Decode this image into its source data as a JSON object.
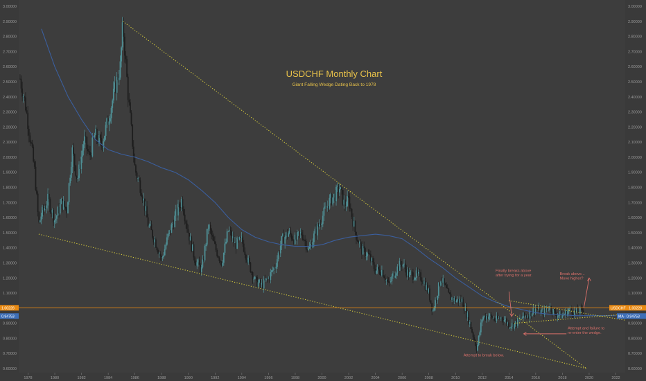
{
  "chart_data": {
    "type": "candlestick",
    "title": "USDCHF Monthly Chart",
    "subtitle": "Giant Falling Wedge Dating Back to 1978",
    "ylim": [
      0.6,
      3.0
    ],
    "xlim": [
      1977.3,
      2022.7
    ],
    "y_ticks": [
      {
        "value": 3.0,
        "label": "3.00000"
      },
      {
        "value": 2.9,
        "label": "2.90000"
      },
      {
        "value": 2.8,
        "label": "2.80000"
      },
      {
        "value": 2.7,
        "label": "2.70000"
      },
      {
        "value": 2.6,
        "label": "2.60000"
      },
      {
        "value": 2.5,
        "label": "2.50000"
      },
      {
        "value": 2.4,
        "label": "2.40000"
      },
      {
        "value": 2.3,
        "label": "2.30000"
      },
      {
        "value": 2.2,
        "label": "2.20000"
      },
      {
        "value": 2.1,
        "label": "2.10000"
      },
      {
        "value": 2.0,
        "label": "2.00000"
      },
      {
        "value": 1.9,
        "label": "1.90000"
      },
      {
        "value": 1.8,
        "label": "1.80000"
      },
      {
        "value": 1.7,
        "label": "1.70000"
      },
      {
        "value": 1.6,
        "label": "1.60000"
      },
      {
        "value": 1.5,
        "label": "1.50000"
      },
      {
        "value": 1.4,
        "label": "1.40000"
      },
      {
        "value": 1.3,
        "label": "1.30000"
      },
      {
        "value": 1.2,
        "label": "1.20000"
      },
      {
        "value": 1.1,
        "label": "1.10000"
      },
      {
        "value": 0.9,
        "label": "0.90000"
      },
      {
        "value": 0.8,
        "label": "0.80000"
      },
      {
        "value": 0.7,
        "label": "0.70000"
      },
      {
        "value": 0.6,
        "label": "0.60000"
      }
    ],
    "x_ticks": [
      {
        "value": 1978,
        "label": "1978"
      },
      {
        "value": 1980,
        "label": "1980"
      },
      {
        "value": 1982,
        "label": "1982"
      },
      {
        "value": 1984,
        "label": "1984"
      },
      {
        "value": 1986,
        "label": "1986"
      },
      {
        "value": 1988,
        "label": "1988"
      },
      {
        "value": 1990,
        "label": "1990"
      },
      {
        "value": 1992,
        "label": "1992"
      },
      {
        "value": 1994,
        "label": "1994"
      },
      {
        "value": 1996,
        "label": "1996"
      },
      {
        "value": 1998,
        "label": "1998"
      },
      {
        "value": 2000,
        "label": "2000"
      },
      {
        "value": 2002,
        "label": "2002"
      },
      {
        "value": 2004,
        "label": "2004"
      },
      {
        "value": 2006,
        "label": "2006"
      },
      {
        "value": 2008,
        "label": "2008"
      },
      {
        "value": 2010,
        "label": "2010"
      },
      {
        "value": 2012,
        "label": "2012"
      },
      {
        "value": 2014,
        "label": "2014"
      },
      {
        "value": 2016,
        "label": "2016"
      },
      {
        "value": 2018,
        "label": "2018"
      },
      {
        "value": 2020,
        "label": "2020"
      },
      {
        "value": 2022,
        "label": "2022"
      }
    ],
    "price_path": [
      [
        1977.4,
        2.52
      ],
      [
        1977.8,
        2.35
      ],
      [
        1978.2,
        2.1
      ],
      [
        1978.5,
        1.9
      ],
      [
        1978.8,
        1.55
      ],
      [
        1979.0,
        1.62
      ],
      [
        1979.5,
        1.72
      ],
      [
        1980.0,
        1.58
      ],
      [
        1980.5,
        1.7
      ],
      [
        1980.9,
        1.65
      ],
      [
        1981.3,
        2.05
      ],
      [
        1981.7,
        1.85
      ],
      [
        1982.2,
        2.12
      ],
      [
        1982.6,
        2.0
      ],
      [
        1983.0,
        2.15
      ],
      [
        1983.5,
        2.08
      ],
      [
        1984.0,
        2.25
      ],
      [
        1984.5,
        2.45
      ],
      [
        1984.9,
        2.6
      ],
      [
        1985.1,
        2.88
      ],
      [
        1985.5,
        2.4
      ],
      [
        1986.0,
        1.92
      ],
      [
        1986.5,
        1.78
      ],
      [
        1987.0,
        1.55
      ],
      [
        1987.5,
        1.45
      ],
      [
        1988.0,
        1.32
      ],
      [
        1988.5,
        1.48
      ],
      [
        1989.0,
        1.6
      ],
      [
        1989.5,
        1.72
      ],
      [
        1990.0,
        1.5
      ],
      [
        1990.5,
        1.32
      ],
      [
        1991.0,
        1.25
      ],
      [
        1991.5,
        1.55
      ],
      [
        1992.0,
        1.4
      ],
      [
        1992.5,
        1.3
      ],
      [
        1993.0,
        1.52
      ],
      [
        1993.5,
        1.42
      ],
      [
        1994.0,
        1.45
      ],
      [
        1994.5,
        1.3
      ],
      [
        1995.0,
        1.18
      ],
      [
        1995.5,
        1.15
      ],
      [
        1996.0,
        1.2
      ],
      [
        1996.5,
        1.28
      ],
      [
        1997.0,
        1.45
      ],
      [
        1997.5,
        1.5
      ],
      [
        1998.0,
        1.45
      ],
      [
        1998.5,
        1.5
      ],
      [
        1999.0,
        1.38
      ],
      [
        1999.5,
        1.5
      ],
      [
        2000.0,
        1.6
      ],
      [
        2000.5,
        1.7
      ],
      [
        2001.0,
        1.75
      ],
      [
        2001.3,
        1.8
      ],
      [
        2001.7,
        1.68
      ],
      [
        2002.0,
        1.72
      ],
      [
        2002.5,
        1.5
      ],
      [
        2003.0,
        1.38
      ],
      [
        2003.5,
        1.35
      ],
      [
        2004.0,
        1.25
      ],
      [
        2004.5,
        1.25
      ],
      [
        2005.0,
        1.15
      ],
      [
        2005.5,
        1.25
      ],
      [
        2006.0,
        1.3
      ],
      [
        2006.5,
        1.22
      ],
      [
        2007.0,
        1.22
      ],
      [
        2007.5,
        1.2
      ],
      [
        2008.0,
        1.1
      ],
      [
        2008.3,
        0.98
      ],
      [
        2008.9,
        1.2
      ],
      [
        2009.5,
        1.08
      ],
      [
        2010.0,
        1.05
      ],
      [
        2010.5,
        1.05
      ],
      [
        2011.0,
        0.92
      ],
      [
        2011.6,
        0.73
      ],
      [
        2012.0,
        0.94
      ],
      [
        2012.5,
        0.95
      ],
      [
        2013.0,
        0.92
      ],
      [
        2013.5,
        0.94
      ],
      [
        2014.0,
        0.89
      ],
      [
        2014.4,
        0.89
      ],
      [
        2015.0,
        0.94
      ],
      [
        2015.5,
        0.96
      ],
      [
        2016.0,
        1.0
      ],
      [
        2016.5,
        0.97
      ],
      [
        2017.0,
        1.01
      ],
      [
        2017.5,
        0.96
      ],
      [
        2018.0,
        0.95
      ],
      [
        2018.5,
        0.99
      ],
      [
        2019.0,
        0.97
      ],
      [
        2019.6,
        0.99
      ]
    ],
    "moving_average": [
      [
        1979.0,
        2.85
      ],
      [
        1980.0,
        2.6
      ],
      [
        1981.0,
        2.4
      ],
      [
        1982.0,
        2.25
      ],
      [
        1983.0,
        2.12
      ],
      [
        1984.0,
        2.05
      ],
      [
        1985.0,
        2.02
      ],
      [
        1986.0,
        2.0
      ],
      [
        1987.0,
        1.97
      ],
      [
        1988.0,
        1.93
      ],
      [
        1989.0,
        1.9
      ],
      [
        1990.0,
        1.85
      ],
      [
        1991.0,
        1.78
      ],
      [
        1992.0,
        1.7
      ],
      [
        1993.0,
        1.6
      ],
      [
        1994.0,
        1.52
      ],
      [
        1995.0,
        1.47
      ],
      [
        1996.0,
        1.44
      ],
      [
        1997.0,
        1.42
      ],
      [
        1998.0,
        1.41
      ],
      [
        1999.0,
        1.41
      ],
      [
        2000.0,
        1.42
      ],
      [
        2001.0,
        1.45
      ],
      [
        2002.0,
        1.47
      ],
      [
        2003.0,
        1.48
      ],
      [
        2004.0,
        1.49
      ],
      [
        2005.0,
        1.48
      ],
      [
        2006.0,
        1.46
      ],
      [
        2007.0,
        1.4
      ],
      [
        2008.0,
        1.33
      ],
      [
        2009.0,
        1.27
      ],
      [
        2010.0,
        1.2
      ],
      [
        2011.0,
        1.14
      ],
      [
        2012.0,
        1.08
      ],
      [
        2013.0,
        1.04
      ],
      [
        2014.0,
        1.01
      ],
      [
        2015.0,
        0.99
      ],
      [
        2016.0,
        0.97
      ],
      [
        2017.0,
        0.96
      ],
      [
        2018.0,
        0.955
      ],
      [
        2019.0,
        0.95
      ],
      [
        2020.0,
        0.95
      ],
      [
        2022.0,
        0.95
      ]
    ],
    "wedge_upper_line": [
      [
        1985.1,
        2.9
      ],
      [
        2019.8,
        0.6
      ]
    ],
    "wedge_lower_line": [
      [
        1978.8,
        1.49
      ],
      [
        2019.8,
        0.6
      ]
    ],
    "breakout_line": [
      [
        2014.4,
        0.9
      ],
      [
        2022.7,
        0.96
      ]
    ],
    "outer_lower_line": [
      [
        2014.0,
        1.05
      ],
      [
        2022.7,
        0.92
      ]
    ],
    "annotations": [
      {
        "lines": [
          "Finally breaks above",
          "after trying for a year."
        ],
        "x": 2013.0,
        "y": 1.24
      },
      {
        "lines": [
          "Break above...",
          "Move higher?"
        ],
        "x": 2017.8,
        "y": 1.22
      },
      {
        "lines": [
          "Attempt and failure to",
          "re-enter the wedge."
        ],
        "x": 2018.4,
        "y": 0.86
      },
      {
        "lines": [
          "Attempt to break below."
        ],
        "x": 2010.6,
        "y": 0.68
      }
    ],
    "price_tag": {
      "left": "1.00228",
      "right": "USDCHF · 1.00228",
      "value": 1.00228,
      "color": "#e98a13"
    },
    "ma_tag": {
      "left": "0.94753",
      "right": "MA · 0.94753",
      "value": 0.94753,
      "color": "#3e6fb8"
    },
    "colors": {
      "background": "#3a3a3a",
      "candles": "#4f8f95",
      "candles_dark": "#1e1e1e",
      "ma": "#3b5f9e",
      "wedge": "#d6cc3c",
      "price_line": "#e98a13",
      "annotation": "#d9706a",
      "title": "#e8c24a"
    }
  }
}
